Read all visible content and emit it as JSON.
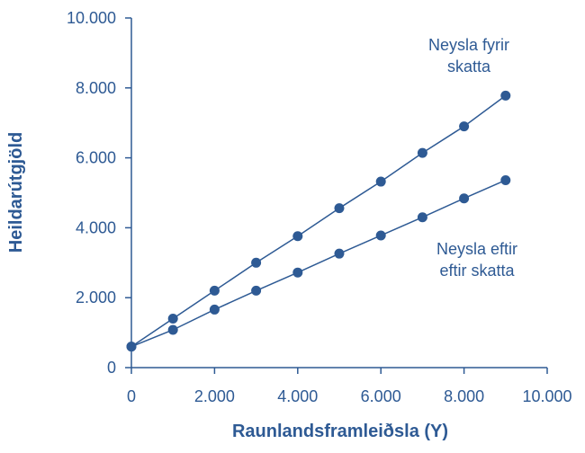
{
  "chart_data": {
    "type": "line",
    "xlabel": "Raunlandsframleiðsla (Y)",
    "ylabel": "Heildarútgjöld",
    "xlim": [
      0,
      10000
    ],
    "ylim": [
      0,
      10000
    ],
    "x_ticks": [
      "0",
      "2.000",
      "4.000",
      "6.000",
      "8.000",
      "10.000"
    ],
    "y_ticks": [
      "0",
      "2.000",
      "4.000",
      "6.000",
      "8.000",
      "10.000"
    ],
    "grid": false,
    "legend": "none",
    "color": "#2e5a94",
    "series": [
      {
        "name": "Neysla fyrir skatta",
        "label_lines": [
          "Neysla fyrir",
          "skatta"
        ],
        "x": [
          0,
          1000,
          2000,
          3000,
          4000,
          5000,
          6000,
          7000,
          8000,
          9000
        ],
        "y": [
          600,
          1400,
          2200,
          3000,
          3760,
          4560,
          5320,
          6140,
          6900,
          7780
        ]
      },
      {
        "name": "Neysla eftir eftir skatta",
        "label_lines": [
          "Neysla eftir",
          "eftir skatta"
        ],
        "x": [
          0,
          1000,
          2000,
          3000,
          4000,
          5000,
          6000,
          7000,
          8000,
          9000
        ],
        "y": [
          600,
          1080,
          1660,
          2200,
          2720,
          3260,
          3780,
          4300,
          4840,
          5360
        ]
      }
    ]
  }
}
